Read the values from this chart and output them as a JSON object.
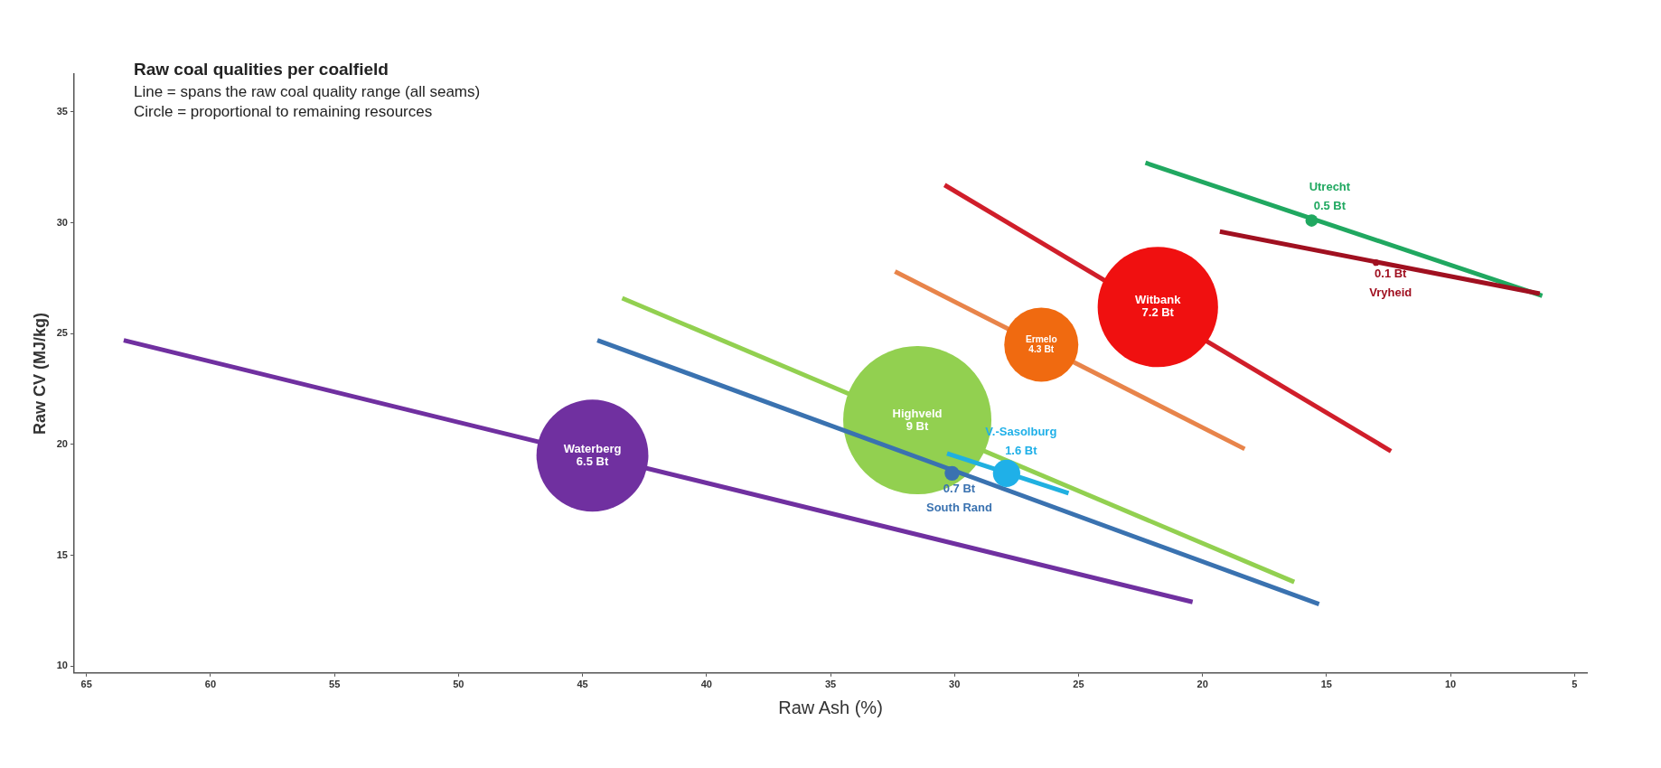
{
  "chart_data": {
    "type": "bubble",
    "title": "Raw coal qualities per coalfield",
    "xlabel": "Raw Ash (%)",
    "ylabel": "Raw CV (MJ/kg)",
    "annotations": [
      "Line = spans the raw coal quality range (all seams)",
      "Circle = proportional to remaining resources",
      {
        "text": "6.5 Bt",
        "x": 44.6,
        "y": 19.5
      },
      {
        "text": "9 Bt",
        "x": 31.5,
        "y": 21.1
      },
      {
        "text": "4.3 Bt",
        "x": 26.5,
        "y": 24.5
      },
      {
        "text": "7.2 Bt",
        "x": 21.8,
        "y": 26.2
      },
      {
        "text": "0.7 Bt",
        "x": 30.1,
        "y": 18.7
      },
      {
        "text": "1.6 Bt",
        "x": 27.9,
        "y": 18.7
      },
      {
        "text": "0.5 Bt",
        "x": 15.6,
        "y": 30.1
      },
      {
        "text": "0.1 Bt",
        "x": 13.0,
        "y": 28.2
      }
    ],
    "xlim": [
      65.5,
      4.5
    ],
    "xticks": [
      65,
      60,
      55,
      50,
      45,
      40,
      35,
      30,
      25,
      20,
      15,
      10,
      5
    ],
    "ylim": [
      9.7,
      36.7
    ],
    "yticks": [
      10,
      15,
      20,
      25,
      30,
      35
    ],
    "grid": false,
    "legend": false,
    "series": [
      {
        "type": "line",
        "color": "#7030a0",
        "x": [
          63.5,
          20.4
        ],
        "values": [
          24.7,
          12.9
        ]
      },
      {
        "name": "Waterberg",
        "color": "#7030a0",
        "x": [
          44.6
        ],
        "values": [
          19.5
        ],
        "sizes": [
          0.57
        ]
      },
      {
        "type": "line",
        "color": "#92d050",
        "x": [
          43.4,
          16.3
        ],
        "values": [
          26.6,
          13.8
        ]
      },
      {
        "name": "Highveld",
        "color": "#92d050",
        "x": [
          31.5
        ],
        "values": [
          21.1
        ],
        "sizes": [
          1
        ]
      },
      {
        "type": "line",
        "color": "#e8844a",
        "x": [
          32.4,
          18.3
        ],
        "values": [
          27.8,
          19.8
        ]
      },
      {
        "name": "Ermelo",
        "color": "#f06a10",
        "x": [
          26.5
        ],
        "values": [
          24.5
        ],
        "sizes": [
          0.25
        ]
      },
      {
        "type": "line",
        "color": "#d01e2a",
        "x": [
          30.4,
          12.4
        ],
        "values": [
          31.7,
          19.7
        ]
      },
      {
        "name": "Witbank",
        "color": "#f01010",
        "x": [
          21.8
        ],
        "values": [
          26.2
        ],
        "sizes": [
          0.66
        ]
      },
      {
        "type": "line",
        "color": "#3a72b0",
        "x": [
          44.4,
          15.3
        ],
        "values": [
          24.7,
          12.8
        ]
      },
      {
        "name": "South Rand",
        "color": "#3a72b0",
        "x": [
          30.1
        ],
        "values": [
          18.7
        ],
        "sizes": [
          0.01
        ]
      },
      {
        "type": "line",
        "color": "#20b0e0",
        "x": [
          30.3,
          25.4
        ],
        "values": [
          19.6,
          17.8
        ]
      },
      {
        "name": "V.-Sasolburg",
        "color": "#1fb0e8",
        "x": [
          27.9
        ],
        "values": [
          18.7
        ],
        "sizes": [
          0.034
        ]
      },
      {
        "type": "line",
        "color": "#20a860",
        "x": [
          22.3,
          6.3
        ],
        "values": [
          32.7,
          26.7
        ]
      },
      {
        "name": "Utrecht",
        "color": "#20a860",
        "x": [
          15.6
        ],
        "values": [
          30.1
        ],
        "sizes": [
          0.007
        ]
      },
      {
        "type": "line",
        "color": "#a01020",
        "x": [
          19.3,
          6.4
        ],
        "values": [
          29.6,
          26.8
        ]
      },
      {
        "name": "Vryheid",
        "color": "#a01020",
        "x": [
          13.0
        ],
        "values": [
          28.2
        ],
        "sizes": [
          0.002
        ]
      }
    ]
  }
}
